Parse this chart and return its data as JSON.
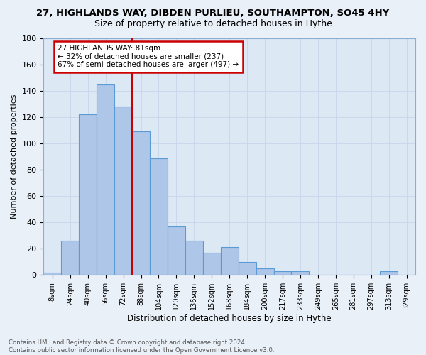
{
  "title": "27, HIGHLANDS WAY, DIBDEN PURLIEU, SOUTHAMPTON, SO45 4HY",
  "subtitle": "Size of property relative to detached houses in Hythe",
  "xlabel": "Distribution of detached houses by size in Hythe",
  "ylabel": "Number of detached properties",
  "bar_labels": [
    "8sqm",
    "24sqm",
    "40sqm",
    "56sqm",
    "72sqm",
    "88sqm",
    "104sqm",
    "120sqm",
    "136sqm",
    "152sqm",
    "168sqm",
    "184sqm",
    "200sqm",
    "217sqm",
    "233sqm",
    "249sqm",
    "265sqm",
    "281sqm",
    "297sqm",
    "313sqm",
    "329sqm"
  ],
  "bar_values": [
    2,
    26,
    122,
    145,
    128,
    109,
    89,
    37,
    26,
    17,
    21,
    10,
    5,
    3,
    3,
    0,
    0,
    0,
    0,
    3,
    0
  ],
  "bar_color": "#aec6e8",
  "bar_edge_color": "#5b9bd5",
  "vline_color": "#cc0000",
  "annotation_text": "27 HIGHLANDS WAY: 81sqm\n← 32% of detached houses are smaller (237)\n67% of semi-detached houses are larger (497) →",
  "annotation_box_color": "#ffffff",
  "annotation_box_edge": "#cc0000",
  "ylim": [
    0,
    180
  ],
  "yticks": [
    0,
    20,
    40,
    60,
    80,
    100,
    120,
    140,
    160,
    180
  ],
  "grid_color": "#c8d4e8",
  "bg_color": "#dde8f5",
  "fig_bg_color": "#eaf0f8",
  "footer": "Contains HM Land Registry data © Crown copyright and database right 2024.\nContains public sector information licensed under the Open Government Licence v3.0."
}
